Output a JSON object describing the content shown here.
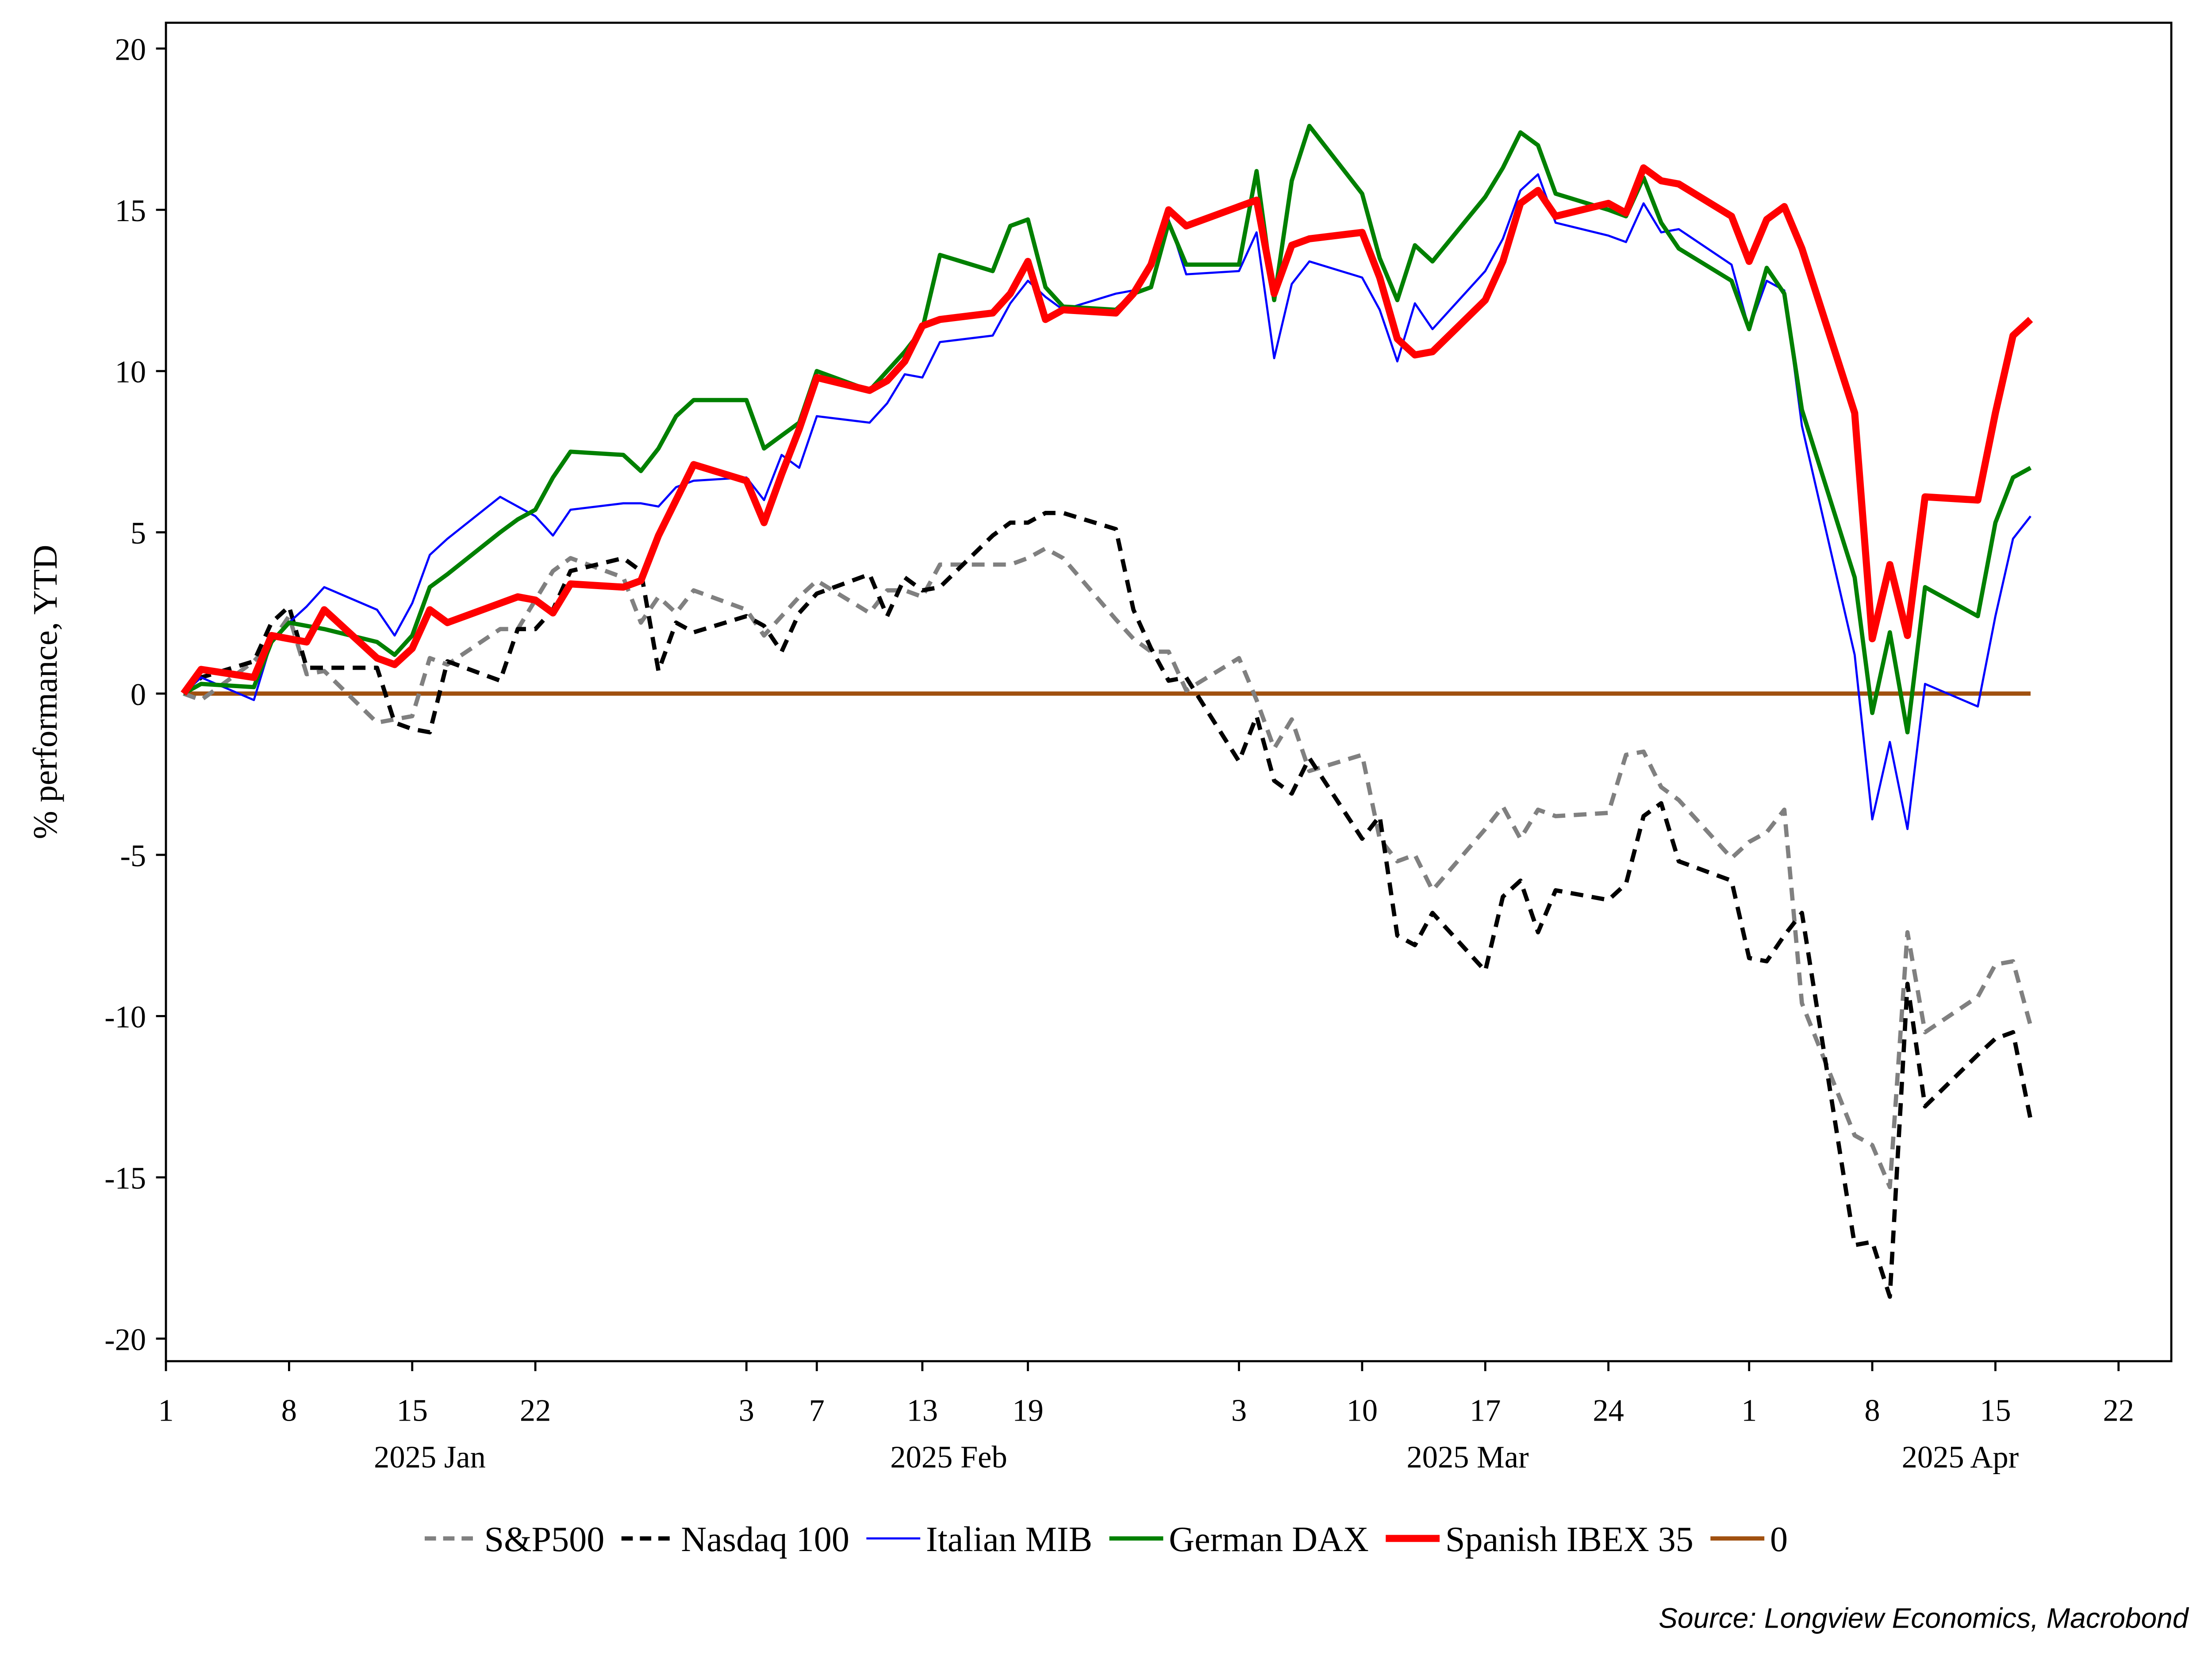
{
  "chart_data": {
    "type": "line",
    "y_label": "% performance, YTD",
    "source": "Source: Longview Economics, Macrobond",
    "x": [
      "2025-01-02",
      "2025-01-03",
      "2025-01-06",
      "2025-01-07",
      "2025-01-08",
      "2025-01-09",
      "2025-01-10",
      "2025-01-13",
      "2025-01-14",
      "2025-01-15",
      "2025-01-16",
      "2025-01-17",
      "2025-01-20",
      "2025-01-21",
      "2025-01-22",
      "2025-01-23",
      "2025-01-24",
      "2025-01-27",
      "2025-01-28",
      "2025-01-29",
      "2025-01-30",
      "2025-01-31",
      "2025-02-03",
      "2025-02-04",
      "2025-02-05",
      "2025-02-06",
      "2025-02-07",
      "2025-02-10",
      "2025-02-11",
      "2025-02-12",
      "2025-02-13",
      "2025-02-14",
      "2025-02-17",
      "2025-02-18",
      "2025-02-19",
      "2025-02-20",
      "2025-02-21",
      "2025-02-24",
      "2025-02-25",
      "2025-02-26",
      "2025-02-27",
      "2025-02-28",
      "2025-03-03",
      "2025-03-04",
      "2025-03-05",
      "2025-03-06",
      "2025-03-07",
      "2025-03-10",
      "2025-03-11",
      "2025-03-12",
      "2025-03-13",
      "2025-03-14",
      "2025-03-17",
      "2025-03-18",
      "2025-03-19",
      "2025-03-20",
      "2025-03-21",
      "2025-03-24",
      "2025-03-25",
      "2025-03-26",
      "2025-03-27",
      "2025-03-28",
      "2025-03-31",
      "2025-04-01",
      "2025-04-02",
      "2025-04-03",
      "2025-04-04",
      "2025-04-07",
      "2025-04-08",
      "2025-04-09",
      "2025-04-10",
      "2025-04-11",
      "2025-04-14",
      "2025-04-15",
      "2025-04-16",
      "2025-04-17"
    ],
    "series": [
      {
        "name": "S&P500",
        "color": "#808080",
        "dashed": true,
        "values": [
          0,
          -0.2,
          1.0,
          1.6,
          2.4,
          0.6,
          0.7,
          -0.9,
          -0.8,
          -0.7,
          1.1,
          0.9,
          2.0,
          2.0,
          2.9,
          3.8,
          4.2,
          3.6,
          2.2,
          3.0,
          2.5,
          3.2,
          2.6,
          1.8,
          2.4,
          3.0,
          3.5,
          2.5,
          3.2,
          3.2,
          3.0,
          4.0,
          4.0,
          4.0,
          4.2,
          4.5,
          4.2,
          2.3,
          1.7,
          1.3,
          1.3,
          0.1,
          1.1,
          -0.2,
          -1.7,
          -0.8,
          -2.4,
          -1.9,
          -4.5,
          -5.2,
          -5.0,
          -6.1,
          -4.2,
          -3.5,
          -4.5,
          -3.6,
          -3.8,
          -3.7,
          -1.9,
          -1.8,
          -2.9,
          -3.3,
          -5.1,
          -4.6,
          -4.3,
          -3.6,
          -9.6,
          -13.7,
          -14.0,
          -15.3,
          -7.4,
          -10.5,
          -9.4,
          -8.4,
          -8.3,
          -10.3
        ]
      },
      {
        "name": "Nasdaq 100",
        "color": "#000000",
        "dashed": true,
        "values": [
          0,
          0.5,
          1.0,
          2.2,
          2.7,
          0.8,
          0.8,
          0.8,
          -0.9,
          -1.1,
          -1.2,
          1.0,
          0.4,
          2.0,
          2.0,
          2.6,
          3.8,
          4.2,
          3.8,
          0.7,
          2.2,
          1.9,
          2.4,
          2.1,
          1.3,
          2.5,
          3.1,
          3.7,
          2.4,
          3.6,
          3.2,
          3.3,
          4.9,
          5.3,
          5.3,
          5.6,
          5.6,
          5.1,
          2.6,
          1.4,
          0.4,
          0.5,
          -2.1,
          -0.7,
          -2.7,
          -3.1,
          -2.0,
          -4.5,
          -3.8,
          -7.5,
          -7.8,
          -6.8,
          -8.6,
          -6.3,
          -5.8,
          -7.4,
          -6.1,
          -6.4,
          -5.9,
          -3.8,
          -3.4,
          -5.2,
          -5.8,
          -8.2,
          -8.3,
          -7.5,
          -6.8,
          -17.1,
          -17.0,
          -18.7,
          -9.0,
          -12.8,
          -11.2,
          -10.7,
          -10.5,
          -13.2
        ]
      },
      {
        "name": "Italian MIB",
        "color": "#0000ff",
        "values": [
          0,
          0.5,
          -0.2,
          1.6,
          2.2,
          2.7,
          3.3,
          2.6,
          1.8,
          2.8,
          4.3,
          4.8,
          6.1,
          5.8,
          5.5,
          4.9,
          5.7,
          5.9,
          5.9,
          5.8,
          6.4,
          6.6,
          6.7,
          6.0,
          7.4,
          7.0,
          8.6,
          8.4,
          9.0,
          9.9,
          9.8,
          10.9,
          11.1,
          12.1,
          12.8,
          12.3,
          11.9,
          12.4,
          12.5,
          13.2,
          14.7,
          13.0,
          13.1,
          14.3,
          10.4,
          12.7,
          13.4,
          12.9,
          11.9,
          10.3,
          12.1,
          11.3,
          13.1,
          14.1,
          15.6,
          16.1,
          14.6,
          14.2,
          14.0,
          15.2,
          14.3,
          14.4,
          13.3,
          11.3,
          12.8,
          12.5,
          8.3,
          1.2,
          -3.9,
          -1.5,
          -4.2,
          0.3,
          -0.4,
          2.4,
          4.8,
          5.5
        ]
      },
      {
        "name": "German DAX",
        "color": "#008000",
        "values": [
          0,
          0.3,
          0.2,
          1.6,
          2.2,
          2.1,
          2.0,
          1.6,
          1.2,
          1.8,
          3.3,
          3.7,
          5.0,
          5.4,
          5.7,
          6.7,
          7.5,
          7.4,
          6.9,
          7.6,
          8.6,
          9.1,
          9.1,
          7.6,
          8.0,
          8.4,
          10.0,
          9.4,
          10.0,
          10.6,
          11.3,
          13.6,
          13.1,
          14.5,
          14.7,
          12.6,
          12.0,
          11.9,
          12.4,
          12.6,
          14.6,
          13.3,
          13.3,
          16.2,
          12.2,
          15.9,
          17.6,
          15.5,
          13.5,
          12.2,
          13.9,
          13.4,
          15.4,
          16.3,
          17.4,
          17.0,
          15.5,
          15.0,
          14.8,
          16.0,
          14.6,
          13.8,
          12.8,
          11.3,
          13.2,
          12.4,
          8.8,
          3.6,
          -0.6,
          1.9,
          -1.2,
          3.3,
          2.4,
          5.3,
          6.7,
          7.0
        ]
      },
      {
        "name": "Spanish IBEX 35",
        "color": "#ff0000",
        "values": [
          0,
          0.75,
          0.5,
          1.8,
          1.7,
          1.6,
          2.6,
          1.1,
          0.9,
          1.4,
          2.6,
          2.2,
          2.8,
          3.0,
          2.9,
          2.5,
          3.4,
          3.3,
          3.5,
          4.9,
          6.0,
          7.1,
          6.6,
          5.3,
          6.8,
          8.2,
          9.8,
          9.4,
          9.7,
          10.3,
          11.4,
          11.6,
          11.8,
          12.4,
          13.4,
          11.6,
          11.9,
          11.8,
          12.4,
          13.3,
          15.0,
          14.5,
          15.1,
          15.3,
          12.4,
          13.9,
          14.1,
          14.3,
          12.9,
          11.0,
          10.5,
          10.6,
          12.2,
          13.4,
          15.2,
          15.6,
          14.8,
          15.2,
          14.9,
          16.3,
          15.9,
          15.8,
          14.8,
          13.4,
          14.7,
          15.1,
          13.8,
          8.7,
          1.7,
          4.0,
          1.8,
          6.1,
          6.0,
          8.7,
          11.1,
          11.6
        ]
      },
      {
        "name": "0",
        "color": "#a0500f",
        "values": [
          0,
          0,
          0,
          0,
          0,
          0,
          0,
          0,
          0,
          0,
          0,
          0,
          0,
          0,
          0,
          0,
          0,
          0,
          0,
          0,
          0,
          0,
          0,
          0,
          0,
          0,
          0,
          0,
          0,
          0,
          0,
          0,
          0,
          0,
          0,
          0,
          0,
          0,
          0,
          0,
          0,
          0,
          0,
          0,
          0,
          0,
          0,
          0,
          0,
          0,
          0,
          0,
          0,
          0,
          0,
          0,
          0,
          0,
          0,
          0,
          0,
          0,
          0,
          0,
          0,
          0,
          0,
          0,
          0,
          0,
          0,
          0,
          0,
          0,
          0,
          0
        ]
      }
    ],
    "xlim": [
      "2025-01-01",
      "2025-04-25"
    ],
    "xticks": [
      {
        "value": "2025-01-01",
        "label": "1"
      },
      {
        "value": "2025-01-08",
        "label": "8"
      },
      {
        "value": "2025-01-15",
        "label": "15"
      },
      {
        "value": "2025-01-22",
        "label": "22"
      },
      {
        "value": "2025-02-03",
        "label": "3"
      },
      {
        "value": "2025-02-07",
        "label": "7"
      },
      {
        "value": "2025-02-13",
        "label": "13"
      },
      {
        "value": "2025-02-19",
        "label": "19"
      },
      {
        "value": "2025-03-03",
        "label": "3"
      },
      {
        "value": "2025-03-10",
        "label": "10"
      },
      {
        "value": "2025-03-17",
        "label": "17"
      },
      {
        "value": "2025-03-24",
        "label": "24"
      },
      {
        "value": "2025-04-01",
        "label": "1"
      },
      {
        "value": "2025-04-08",
        "label": "8"
      },
      {
        "value": "2025-04-15",
        "label": "15"
      },
      {
        "value": "2025-04-22",
        "label": "22"
      }
    ],
    "month_labels": [
      "2025 Jan",
      "2025 Feb",
      "2025 Mar",
      "2025 Apr"
    ],
    "ylim": [
      -20.7,
      20.8
    ],
    "yticks": [
      -20,
      -15,
      -10,
      -5,
      0,
      5,
      10,
      15,
      20
    ],
    "legend": "bottom"
  }
}
